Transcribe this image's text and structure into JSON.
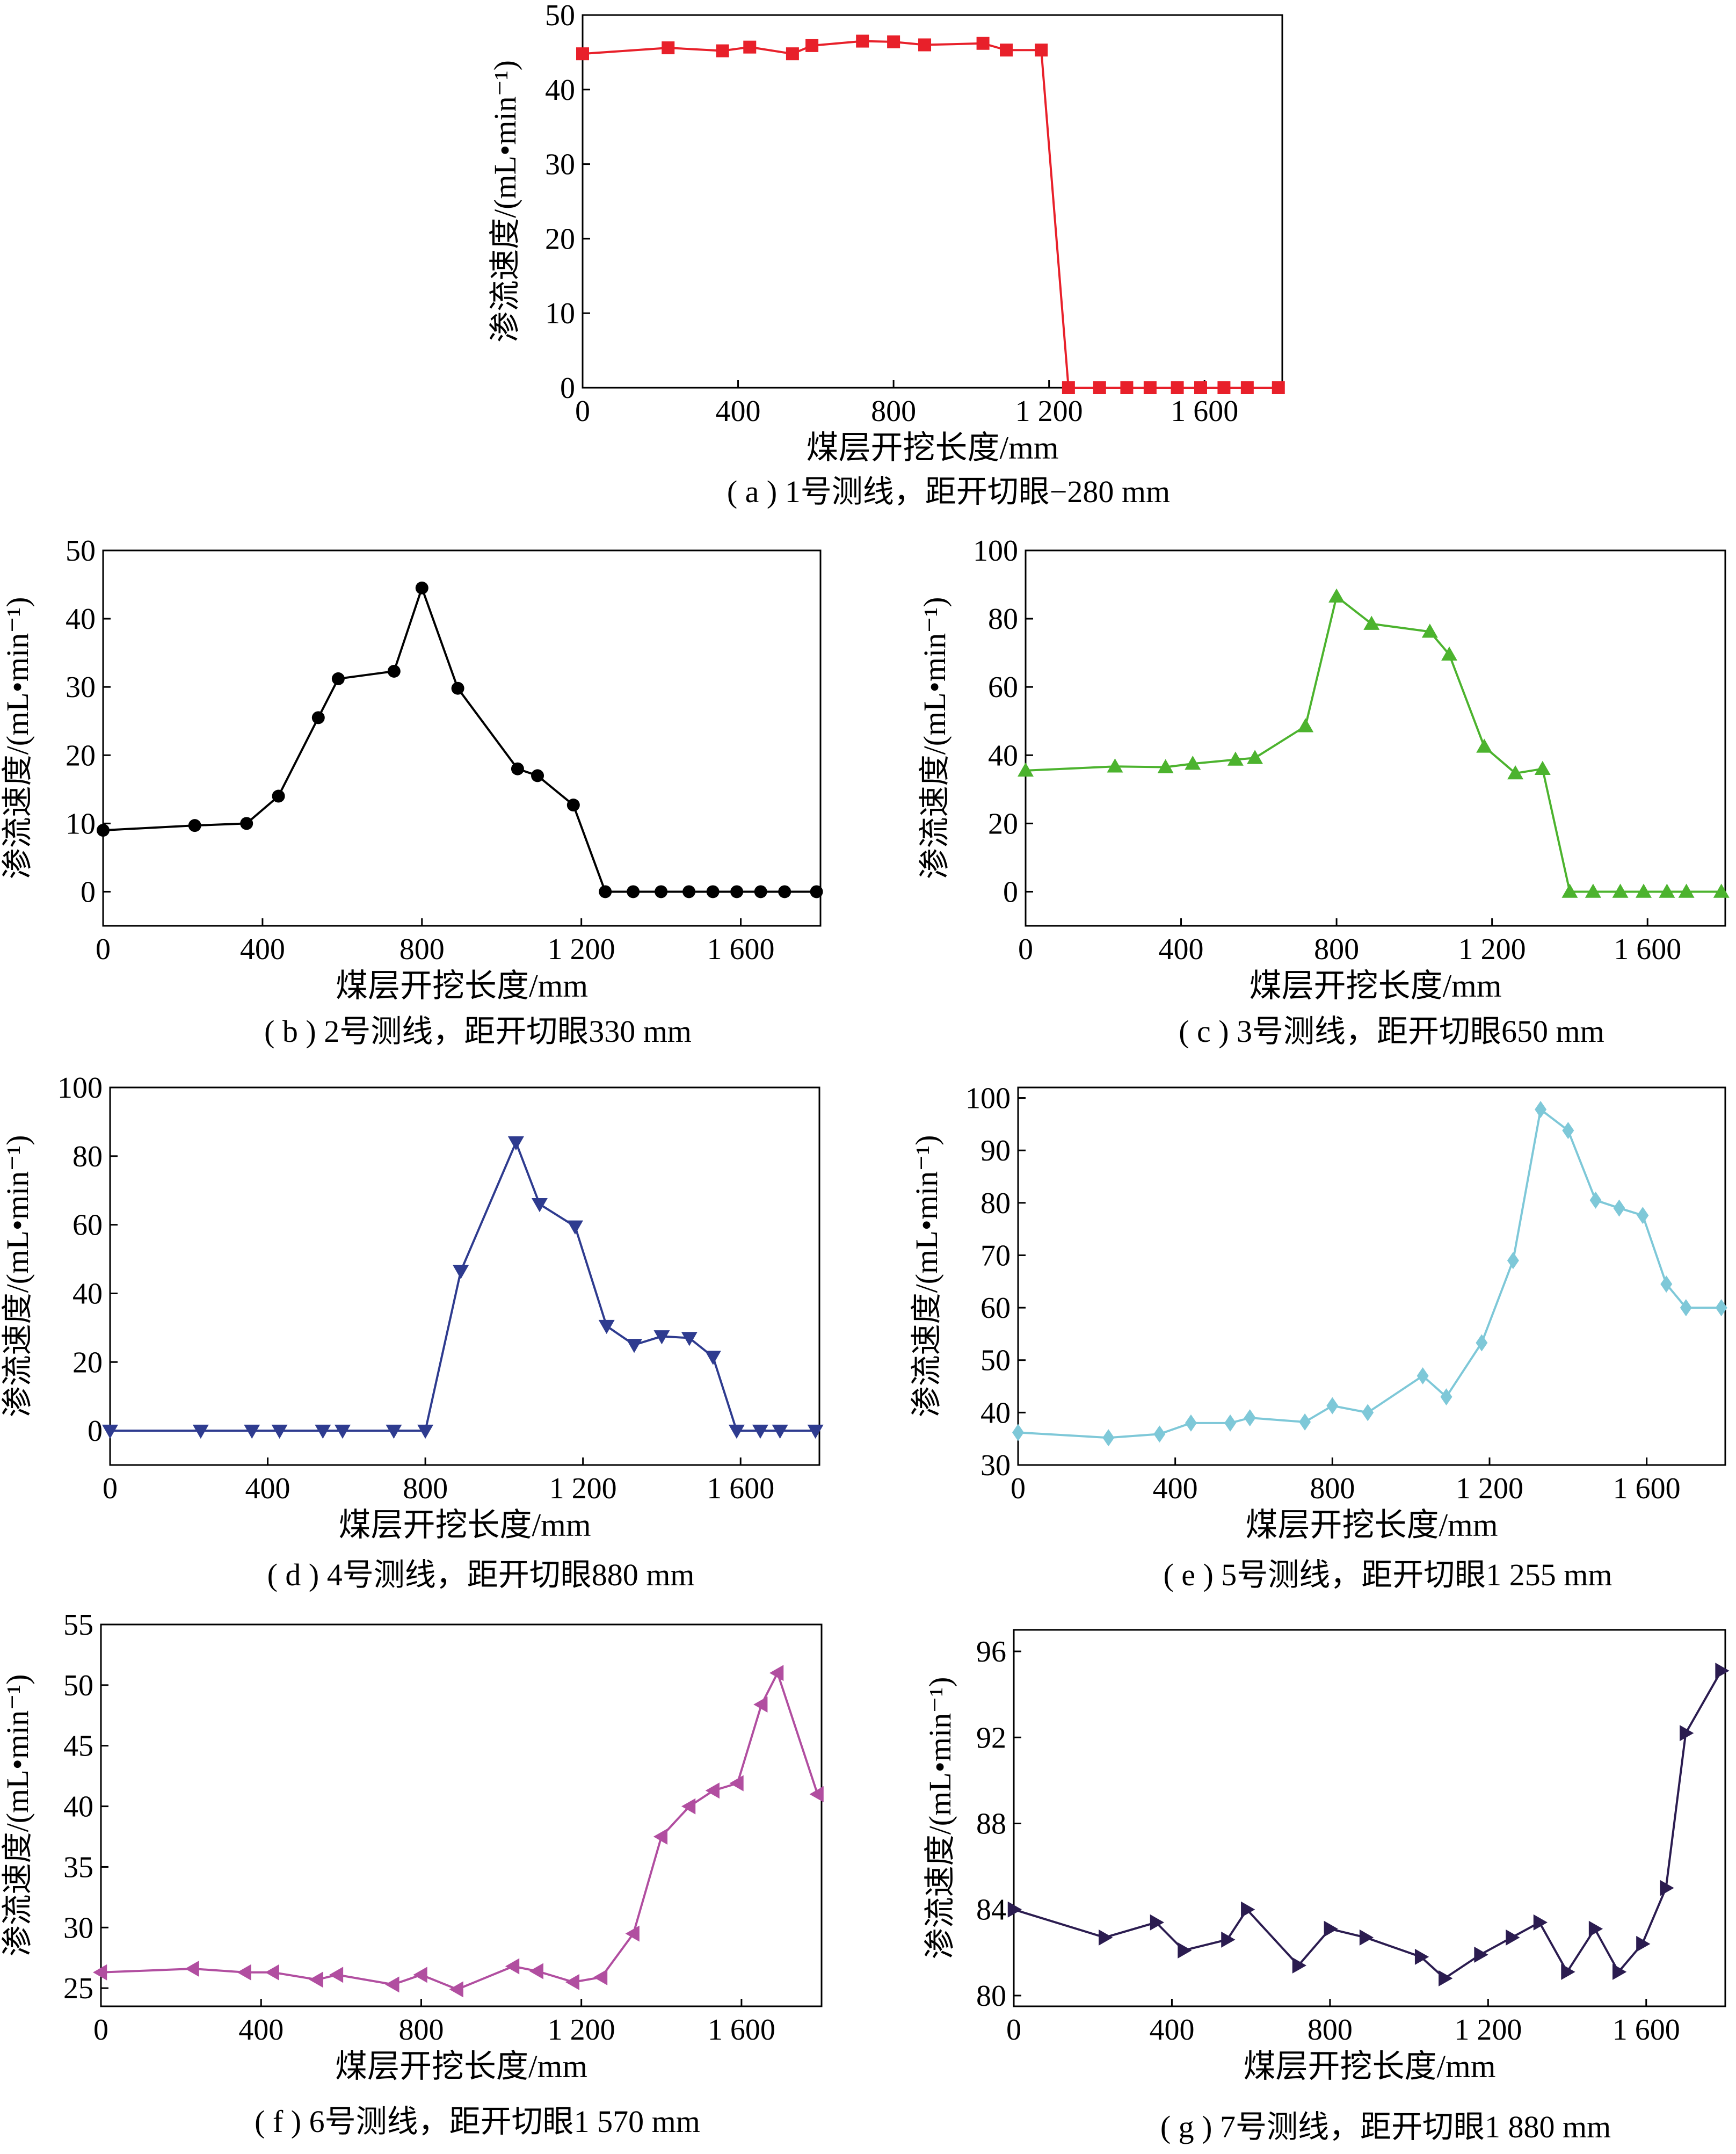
{
  "x_ticks": [
    0,
    400,
    800,
    1200,
    1600
  ],
  "x_tick_labels": [
    "0",
    "400",
    "800",
    "1 200",
    "1 600"
  ],
  "chart_data": [
    {
      "type": "line",
      "id": "a",
      "caption": "( a ) 1号测线，距开切眼−280 mm",
      "xlabel": "煤层开挖长度/mm",
      "ylabel": "渗流速度/(mL•min⁻¹)",
      "xlim": [
        0,
        1800
      ],
      "ylim": [
        0,
        50
      ],
      "yticks": [
        0,
        10,
        20,
        30,
        40,
        50
      ],
      "marker": "square",
      "color": "#e8202a",
      "x": [
        0,
        220,
        360,
        430,
        540,
        590,
        720,
        800,
        880,
        1030,
        1090,
        1180,
        1250,
        1330,
        1400,
        1460,
        1530,
        1590,
        1650,
        1710,
        1790
      ],
      "y": [
        44.8,
        45.6,
        45.2,
        45.7,
        44.8,
        45.9,
        46.5,
        46.4,
        46.0,
        46.2,
        45.3,
        45.3,
        0,
        0,
        0,
        0,
        0,
        0,
        0,
        0,
        0
      ]
    },
    {
      "type": "line",
      "id": "b",
      "caption": "( b ) 2号测线，距开切眼330 mm",
      "xlabel": "煤层开挖长度/mm",
      "ylabel": "渗流速度/(mL•min⁻¹)",
      "xlim": [
        0,
        1800
      ],
      "ylim": [
        -5,
        50
      ],
      "yticks": [
        0,
        10,
        20,
        30,
        40,
        50
      ],
      "marker": "circle",
      "color": "#000000",
      "x": [
        0,
        230,
        360,
        440,
        540,
        590,
        730,
        800,
        890,
        1040,
        1090,
        1180,
        1260,
        1330,
        1400,
        1470,
        1530,
        1590,
        1650,
        1710,
        1790
      ],
      "y": [
        9.0,
        9.7,
        10.0,
        14.0,
        25.5,
        31.2,
        32.3,
        44.5,
        29.8,
        18.0,
        17.0,
        12.7,
        0,
        0,
        0,
        0,
        0,
        0,
        0,
        0,
        0
      ]
    },
    {
      "type": "line",
      "id": "c",
      "caption": "( c ) 3号测线，距开切眼650 mm",
      "xlabel": "煤层开挖长度/mm",
      "ylabel": "渗流速度/(mL•min⁻¹)",
      "xlim": [
        0,
        1800
      ],
      "ylim": [
        -10,
        100
      ],
      "yticks": [
        0,
        20,
        40,
        60,
        80,
        100
      ],
      "marker": "triangle-up",
      "color": "#4cb32e",
      "x": [
        0,
        230,
        360,
        430,
        540,
        590,
        720,
        800,
        890,
        1040,
        1090,
        1180,
        1260,
        1330,
        1400,
        1460,
        1530,
        1590,
        1650,
        1700,
        1790
      ],
      "y": [
        35.5,
        36.7,
        36.5,
        37.5,
        38.7,
        39.2,
        48.5,
        86.5,
        78.5,
        76.2,
        69.5,
        42.5,
        34.7,
        36.0,
        0,
        0,
        0,
        0,
        0,
        0,
        0
      ]
    },
    {
      "type": "line",
      "id": "d",
      "caption": "( d ) 4号测线，距开切眼880 mm",
      "xlabel": "煤层开挖长度/mm",
      "ylabel": "渗流速度/(mL•min⁻¹)",
      "xlim": [
        0,
        1800
      ],
      "ylim": [
        -10,
        100
      ],
      "yticks": [
        0,
        20,
        40,
        60,
        80,
        100
      ],
      "marker": "triangle-down",
      "color": "#2e3b8f",
      "x": [
        0,
        230,
        360,
        430,
        540,
        590,
        720,
        800,
        890,
        1030,
        1090,
        1180,
        1260,
        1330,
        1400,
        1470,
        1530,
        1590,
        1650,
        1700,
        1790
      ],
      "y": [
        0,
        0,
        0,
        0,
        0,
        0,
        0,
        0,
        46.5,
        84.0,
        66.0,
        59.5,
        30.5,
        25.0,
        27.5,
        27.0,
        21.5,
        0,
        0,
        0,
        0
      ]
    },
    {
      "type": "line",
      "id": "e",
      "caption": "( e ) 5号测线，距开切眼1 255 mm",
      "xlabel": "煤层开挖长度/mm",
      "ylabel": "渗流速度/(mL•min⁻¹)",
      "xlim": [
        0,
        1800
      ],
      "ylim": [
        30,
        102
      ],
      "yticks": [
        30,
        40,
        50,
        60,
        70,
        80,
        90,
        100
      ],
      "marker": "diamond",
      "color": "#7ec8d8",
      "x": [
        0,
        230,
        360,
        440,
        540,
        590,
        730,
        800,
        890,
        1030,
        1090,
        1180,
        1260,
        1330,
        1400,
        1470,
        1530,
        1590,
        1650,
        1700,
        1790
      ],
      "y": [
        36.2,
        35.2,
        35.9,
        38.0,
        38.0,
        39.0,
        38.2,
        41.3,
        40.0,
        47.0,
        43.0,
        53.3,
        69.0,
        97.8,
        93.8,
        80.5,
        79.0,
        77.6,
        64.5,
        60.0,
        60.0
      ]
    },
    {
      "type": "line",
      "id": "f",
      "caption": "( f ) 6号测线，距开切眼1 570 mm",
      "xlabel": "煤层开挖长度/mm",
      "ylabel": "渗流速度/(mL•min⁻¹)",
      "xlim": [
        0,
        1800
      ],
      "ylim": [
        23.5,
        55
      ],
      "yticks": [
        25,
        30,
        35,
        40,
        45,
        50,
        55
      ],
      "marker": "triangle-left",
      "color": "#b14ea0",
      "x": [
        0,
        230,
        360,
        430,
        540,
        590,
        730,
        800,
        890,
        1030,
        1090,
        1180,
        1250,
        1330,
        1400,
        1470,
        1530,
        1590,
        1650,
        1690,
        1790
      ],
      "y": [
        26.3,
        26.6,
        26.3,
        26.3,
        25.7,
        26.1,
        25.3,
        26.1,
        24.9,
        26.8,
        26.4,
        25.5,
        25.9,
        29.5,
        37.5,
        40.0,
        41.3,
        41.9,
        48.4,
        51.0,
        41.0
      ]
    },
    {
      "type": "line",
      "id": "g",
      "caption": "( g ) 7号测线，距开切眼1 880 mm",
      "xlabel": "煤层开挖长度/mm",
      "ylabel": "渗流速度/(mL•min⁻¹)",
      "xlim": [
        0,
        1800
      ],
      "ylim": [
        79.5,
        97
      ],
      "yticks": [
        80,
        84,
        88,
        92,
        96
      ],
      "marker": "triangle-right",
      "color": "#2b1c50",
      "x": [
        0,
        230,
        360,
        430,
        540,
        590,
        720,
        800,
        890,
        1030,
        1090,
        1180,
        1260,
        1330,
        1400,
        1470,
        1530,
        1590,
        1650,
        1700,
        1790
      ],
      "y": [
        84.0,
        82.7,
        83.4,
        82.1,
        82.6,
        84.0,
        81.4,
        83.1,
        82.7,
        81.8,
        80.8,
        81.9,
        82.7,
        83.4,
        81.1,
        83.1,
        81.1,
        82.4,
        85.0,
        92.2,
        95.1
      ]
    }
  ]
}
